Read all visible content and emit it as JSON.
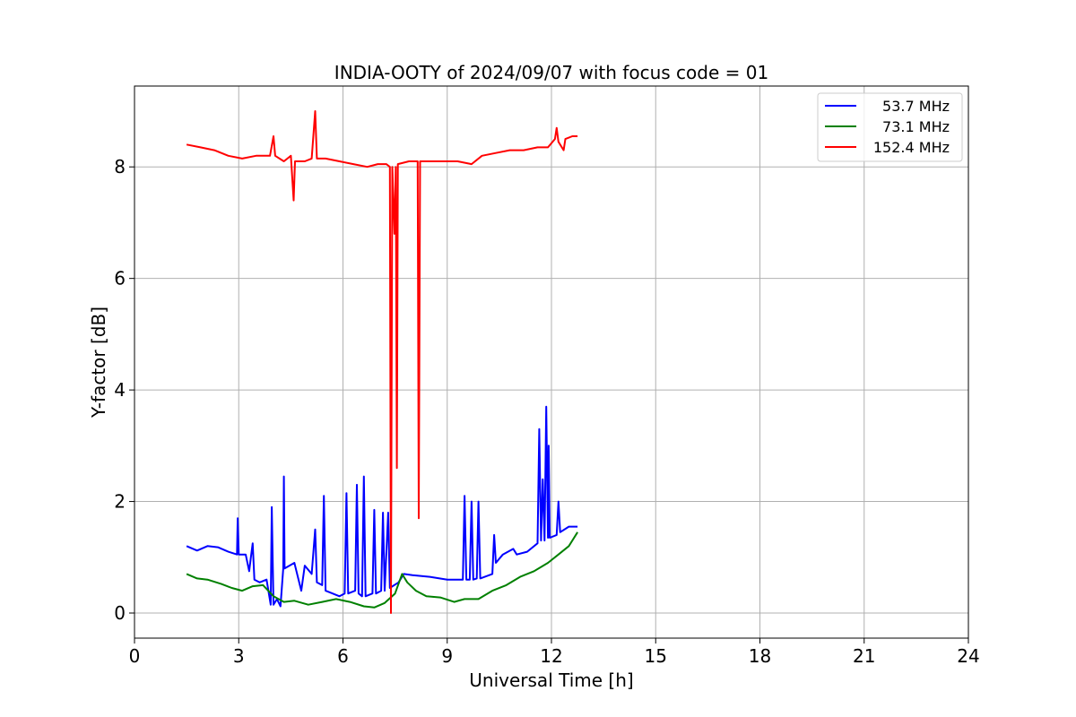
{
  "chart_data": {
    "type": "line",
    "title": "INDIA-OOTY of 2024/09/07 with focus code = 01",
    "xlabel": "Universal Time [h]",
    "ylabel": "Y-factor [dB]",
    "xlim": [
      0,
      24
    ],
    "ylim": [
      -0.45,
      9.45
    ],
    "xticks": [
      0,
      3,
      6,
      9,
      12,
      15,
      18,
      21,
      24
    ],
    "yticks": [
      0,
      2,
      4,
      6,
      8
    ],
    "grid": true,
    "legend_position": "top-right",
    "series": [
      {
        "name": "53.7 MHz",
        "color": "#0000ff",
        "points": [
          [
            1.5,
            1.2
          ],
          [
            1.8,
            1.12
          ],
          [
            2.1,
            1.2
          ],
          [
            2.4,
            1.18
          ],
          [
            2.7,
            1.1
          ],
          [
            2.95,
            1.05
          ],
          [
            2.97,
            1.7
          ],
          [
            3.0,
            1.05
          ],
          [
            3.2,
            1.05
          ],
          [
            3.3,
            0.75
          ],
          [
            3.35,
            1.0
          ],
          [
            3.4,
            1.25
          ],
          [
            3.45,
            0.6
          ],
          [
            3.6,
            0.55
          ],
          [
            3.8,
            0.6
          ],
          [
            3.92,
            0.15
          ],
          [
            3.95,
            1.9
          ],
          [
            4.0,
            0.15
          ],
          [
            4.1,
            0.25
          ],
          [
            4.2,
            0.12
          ],
          [
            4.28,
            0.8
          ],
          [
            4.3,
            2.45
          ],
          [
            4.32,
            0.8
          ],
          [
            4.6,
            0.9
          ],
          [
            4.8,
            0.4
          ],
          [
            4.9,
            0.85
          ],
          [
            5.1,
            0.7
          ],
          [
            5.2,
            1.5
          ],
          [
            5.25,
            0.55
          ],
          [
            5.4,
            0.5
          ],
          [
            5.45,
            2.1
          ],
          [
            5.5,
            0.4
          ],
          [
            5.7,
            0.35
          ],
          [
            5.9,
            0.3
          ],
          [
            6.05,
            0.35
          ],
          [
            6.1,
            2.15
          ],
          [
            6.15,
            0.35
          ],
          [
            6.35,
            0.4
          ],
          [
            6.4,
            2.3
          ],
          [
            6.45,
            0.35
          ],
          [
            6.55,
            0.3
          ],
          [
            6.6,
            2.45
          ],
          [
            6.65,
            0.3
          ],
          [
            6.85,
            0.35
          ],
          [
            6.9,
            1.85
          ],
          [
            6.95,
            0.35
          ],
          [
            7.1,
            0.4
          ],
          [
            7.15,
            1.8
          ],
          [
            7.2,
            0.4
          ],
          [
            7.3,
            1.8
          ],
          [
            7.35,
            0.45
          ],
          [
            7.6,
            0.55
          ],
          [
            7.75,
            0.7
          ],
          [
            8.0,
            0.68
          ],
          [
            8.5,
            0.65
          ],
          [
            9.0,
            0.6
          ],
          [
            9.45,
            0.6
          ],
          [
            9.5,
            2.1
          ],
          [
            9.55,
            0.6
          ],
          [
            9.65,
            0.6
          ],
          [
            9.7,
            2.0
          ],
          [
            9.75,
            0.6
          ],
          [
            9.85,
            0.62
          ],
          [
            9.9,
            2.0
          ],
          [
            9.95,
            0.62
          ],
          [
            10.3,
            0.7
          ],
          [
            10.35,
            1.4
          ],
          [
            10.4,
            0.9
          ],
          [
            10.6,
            1.05
          ],
          [
            10.9,
            1.15
          ],
          [
            11.0,
            1.05
          ],
          [
            11.3,
            1.1
          ],
          [
            11.6,
            1.25
          ],
          [
            11.65,
            3.3
          ],
          [
            11.7,
            1.3
          ],
          [
            11.75,
            2.4
          ],
          [
            11.8,
            1.3
          ],
          [
            11.85,
            3.7
          ],
          [
            11.9,
            1.35
          ],
          [
            11.92,
            3.0
          ],
          [
            11.95,
            1.35
          ],
          [
            12.15,
            1.4
          ],
          [
            12.2,
            2.0
          ],
          [
            12.25,
            1.45
          ],
          [
            12.5,
            1.55
          ],
          [
            12.75,
            1.55
          ]
        ]
      },
      {
        "name": "73.1 MHz",
        "color": "#008000",
        "points": [
          [
            1.5,
            0.7
          ],
          [
            1.8,
            0.62
          ],
          [
            2.1,
            0.6
          ],
          [
            2.5,
            0.52
          ],
          [
            2.8,
            0.45
          ],
          [
            3.1,
            0.4
          ],
          [
            3.4,
            0.48
          ],
          [
            3.7,
            0.5
          ],
          [
            4.0,
            0.3
          ],
          [
            4.3,
            0.2
          ],
          [
            4.6,
            0.22
          ],
          [
            5.0,
            0.15
          ],
          [
            5.4,
            0.2
          ],
          [
            5.8,
            0.25
          ],
          [
            6.2,
            0.2
          ],
          [
            6.6,
            0.12
          ],
          [
            6.9,
            0.1
          ],
          [
            7.2,
            0.18
          ],
          [
            7.5,
            0.35
          ],
          [
            7.7,
            0.7
          ],
          [
            7.85,
            0.55
          ],
          [
            8.1,
            0.4
          ],
          [
            8.4,
            0.3
          ],
          [
            8.8,
            0.28
          ],
          [
            9.2,
            0.2
          ],
          [
            9.5,
            0.25
          ],
          [
            9.9,
            0.25
          ],
          [
            10.3,
            0.4
          ],
          [
            10.7,
            0.5
          ],
          [
            11.1,
            0.65
          ],
          [
            11.5,
            0.75
          ],
          [
            11.9,
            0.9
          ],
          [
            12.2,
            1.05
          ],
          [
            12.5,
            1.2
          ],
          [
            12.75,
            1.45
          ]
        ]
      },
      {
        "name": "152.4 MHz",
        "color": "#ff0000",
        "points": [
          [
            1.5,
            8.4
          ],
          [
            1.9,
            8.35
          ],
          [
            2.3,
            8.3
          ],
          [
            2.7,
            8.2
          ],
          [
            3.1,
            8.15
          ],
          [
            3.5,
            8.2
          ],
          [
            3.9,
            8.2
          ],
          [
            4.0,
            8.55
          ],
          [
            4.05,
            8.2
          ],
          [
            4.3,
            8.1
          ],
          [
            4.5,
            8.2
          ],
          [
            4.58,
            7.4
          ],
          [
            4.62,
            8.1
          ],
          [
            4.9,
            8.1
          ],
          [
            5.1,
            8.15
          ],
          [
            5.2,
            9.0
          ],
          [
            5.25,
            8.15
          ],
          [
            5.5,
            8.15
          ],
          [
            5.9,
            8.1
          ],
          [
            6.3,
            8.05
          ],
          [
            6.7,
            8.0
          ],
          [
            7.0,
            8.05
          ],
          [
            7.25,
            8.05
          ],
          [
            7.35,
            8.0
          ],
          [
            7.38,
            0.0
          ],
          [
            7.42,
            8.0
          ],
          [
            7.48,
            6.8
          ],
          [
            7.52,
            8.0
          ],
          [
            7.55,
            2.6
          ],
          [
            7.58,
            8.05
          ],
          [
            7.9,
            8.1
          ],
          [
            8.15,
            8.1
          ],
          [
            8.18,
            1.7
          ],
          [
            8.22,
            8.1
          ],
          [
            8.5,
            8.1
          ],
          [
            8.9,
            8.1
          ],
          [
            9.3,
            8.1
          ],
          [
            9.7,
            8.05
          ],
          [
            10.0,
            8.2
          ],
          [
            10.4,
            8.25
          ],
          [
            10.8,
            8.3
          ],
          [
            11.2,
            8.3
          ],
          [
            11.6,
            8.35
          ],
          [
            11.9,
            8.35
          ],
          [
            12.1,
            8.5
          ],
          [
            12.15,
            8.7
          ],
          [
            12.2,
            8.45
          ],
          [
            12.35,
            8.3
          ],
          [
            12.4,
            8.5
          ],
          [
            12.6,
            8.55
          ],
          [
            12.75,
            8.55
          ]
        ]
      }
    ]
  }
}
